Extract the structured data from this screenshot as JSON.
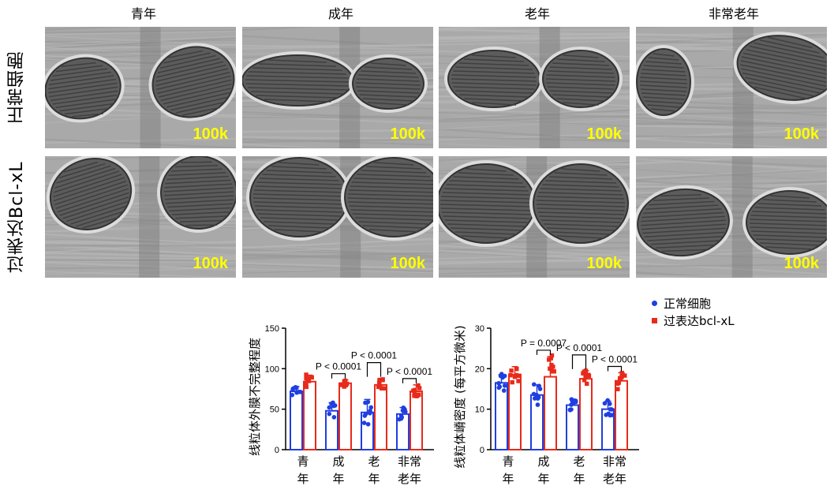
{
  "columns": [
    "青年",
    "成年",
    "老年",
    "非常老年"
  ],
  "rows": [
    "正常细胞",
    "过表达Bcl-xL"
  ],
  "magnification": "100k",
  "legend": {
    "normal": "正常细胞",
    "bclxl": "过表达bcl-xL"
  },
  "colors": {
    "normal": "#1f3fe0",
    "bclxl": "#e82a1a"
  },
  "chart_data": [
    {
      "type": "bar",
      "ylabel": "线粒体外膜不完整程度",
      "ylim": [
        0,
        150
      ],
      "yticks": [
        0,
        50,
        100,
        150
      ],
      "categories": [
        [
          "青",
          "年"
        ],
        [
          "成",
          "年"
        ],
        [
          "老",
          "年"
        ],
        [
          "非常",
          "老年"
        ]
      ],
      "series": [
        {
          "name": "正常细胞",
          "values": [
            72,
            48,
            46,
            44
          ],
          "errors": [
            6,
            10,
            16,
            8
          ]
        },
        {
          "name": "过表达bcl-xL",
          "values": [
            84,
            82,
            80,
            72
          ],
          "errors": [
            8,
            4,
            8,
            8
          ]
        }
      ],
      "annotations": [
        {
          "text": "P < 0.0001",
          "pair": 1
        },
        {
          "text": "P < 0.0001",
          "pair": 2
        },
        {
          "text": "P < 0.0001",
          "pair": 3
        }
      ]
    },
    {
      "type": "bar",
      "ylabel": "线粒体嵴密度 (每平方微米)",
      "ylim": [
        0,
        30
      ],
      "yticks": [
        0,
        10,
        20,
        30
      ],
      "categories": [
        [
          "青",
          "年"
        ],
        [
          "成",
          "年"
        ],
        [
          "老",
          "年"
        ],
        [
          "非常",
          "老年"
        ]
      ],
      "series": [
        {
          "name": "正常细胞",
          "values": [
            16.5,
            13.5,
            11,
            10
          ],
          "errors": [
            2,
            2.5,
            1.5,
            2
          ]
        },
        {
          "name": "过表达bcl-xL",
          "values": [
            18.5,
            18,
            17.5,
            17
          ],
          "errors": [
            2,
            5,
            2,
            2
          ]
        }
      ],
      "annotations": [
        {
          "text": "P = 0.0007",
          "pair": 1
        },
        {
          "text": "P < 0.0001",
          "pair": 2
        },
        {
          "text": "P < 0.0001",
          "pair": 3
        }
      ]
    }
  ]
}
